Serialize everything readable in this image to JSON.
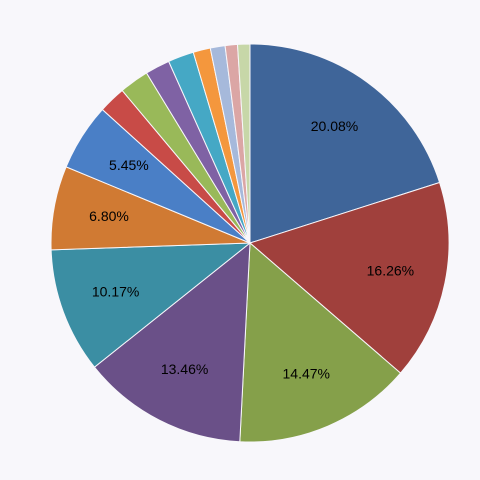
{
  "chart_data": {
    "type": "pie",
    "values": [
      20.08,
      16.26,
      14.47,
      13.46,
      10.17,
      6.8,
      5.45,
      2.2,
      2.4,
      2.0,
      2.1,
      1.4,
      1.2,
      1.0,
      1.0
    ],
    "value_labels": [
      "20.08%",
      "16.26%",
      "14.47%",
      "13.46%",
      "10.17%",
      "6.80%",
      "5.45%",
      null,
      null,
      null,
      null,
      null,
      null,
      null,
      null
    ],
    "colors": [
      "#3f6599",
      "#a0403c",
      "#85a04a",
      "#6a5088",
      "#3b8ea3",
      "#d07a33",
      "#4a7fc6",
      "#c84b47",
      "#99b959",
      "#7f62a4",
      "#45a8c5",
      "#f4973d",
      "#a6b9db",
      "#dba6a5",
      "#c7d7a8"
    ]
  }
}
